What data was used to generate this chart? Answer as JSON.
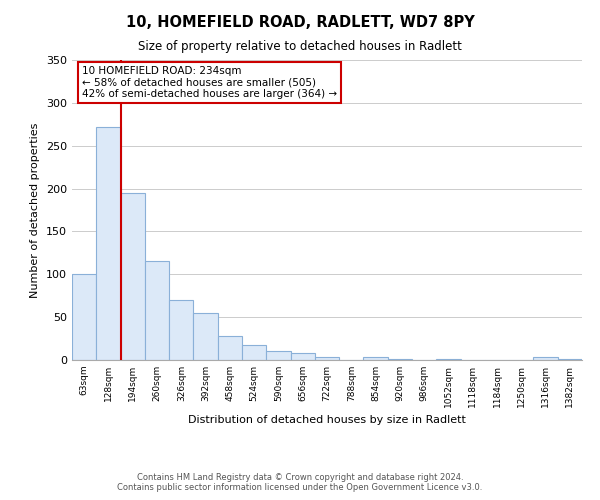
{
  "title1": "10, HOMEFIELD ROAD, RADLETT, WD7 8PY",
  "title2": "Size of property relative to detached houses in Radlett",
  "xlabel": "Distribution of detached houses by size in Radlett",
  "ylabel": "Number of detached properties",
  "bar_labels": [
    "63sqm",
    "128sqm",
    "194sqm",
    "260sqm",
    "326sqm",
    "392sqm",
    "458sqm",
    "524sqm",
    "590sqm",
    "656sqm",
    "722sqm",
    "788sqm",
    "854sqm",
    "920sqm",
    "986sqm",
    "1052sqm",
    "1118sqm",
    "1184sqm",
    "1250sqm",
    "1316sqm",
    "1382sqm"
  ],
  "bar_values": [
    100,
    272,
    195,
    115,
    70,
    55,
    28,
    17,
    11,
    8,
    4,
    0,
    4,
    1,
    0,
    1,
    0,
    0,
    0,
    3,
    1
  ],
  "bar_face_color": "#dce9f8",
  "bar_edge_color": "#8ab0d8",
  "marker_color": "#cc0000",
  "annotation_title": "10 HOMEFIELD ROAD: 234sqm",
  "annotation_line1": "← 58% of detached houses are smaller (505)",
  "annotation_line2": "42% of semi-detached houses are larger (364) →",
  "annotation_box_color": "#ffffff",
  "annotation_border_color": "#cc0000",
  "ylim": [
    0,
    350
  ],
  "yticks": [
    0,
    50,
    100,
    150,
    200,
    250,
    300,
    350
  ],
  "footer1": "Contains HM Land Registry data © Crown copyright and database right 2024.",
  "footer2": "Contains public sector information licensed under the Open Government Licence v3.0.",
  "grid_color": "#cccccc",
  "bg_color": "#ffffff",
  "red_line_index": 2
}
